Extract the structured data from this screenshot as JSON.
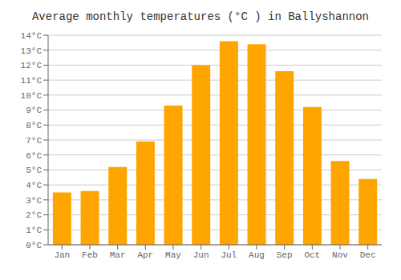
{
  "chart_data": {
    "type": "bar",
    "title": "Average monthly temperatures (°C ) in Ballyshannon",
    "categories": [
      "Jan",
      "Feb",
      "Mar",
      "Apr",
      "May",
      "Jun",
      "Jul",
      "Aug",
      "Sep",
      "Oct",
      "Nov",
      "Dec"
    ],
    "values": [
      3.5,
      3.6,
      5.2,
      6.9,
      9.3,
      12.0,
      13.6,
      13.4,
      11.6,
      9.2,
      5.6,
      4.4
    ],
    "color": "#FFA500",
    "ylim": [
      0,
      14
    ],
    "yticks": [
      {
        "value": 0,
        "label": "0°C"
      },
      {
        "value": 1,
        "label": "1°C"
      },
      {
        "value": 2,
        "label": "2°C"
      },
      {
        "value": 3,
        "label": "3°C"
      },
      {
        "value": 4,
        "label": "4°C"
      },
      {
        "value": 5,
        "label": "5°C"
      },
      {
        "value": 6,
        "label": "6°C"
      },
      {
        "value": 7,
        "label": "7°C"
      },
      {
        "value": 8,
        "label": "8°C"
      },
      {
        "value": 9,
        "label": "9°C"
      },
      {
        "value": 10,
        "label": "10°C"
      },
      {
        "value": 11,
        "label": "11°C"
      },
      {
        "value": 12,
        "label": "12°C"
      },
      {
        "value": 13,
        "label": "13°C"
      },
      {
        "value": 14,
        "label": "14°C"
      }
    ],
    "grid": true
  }
}
